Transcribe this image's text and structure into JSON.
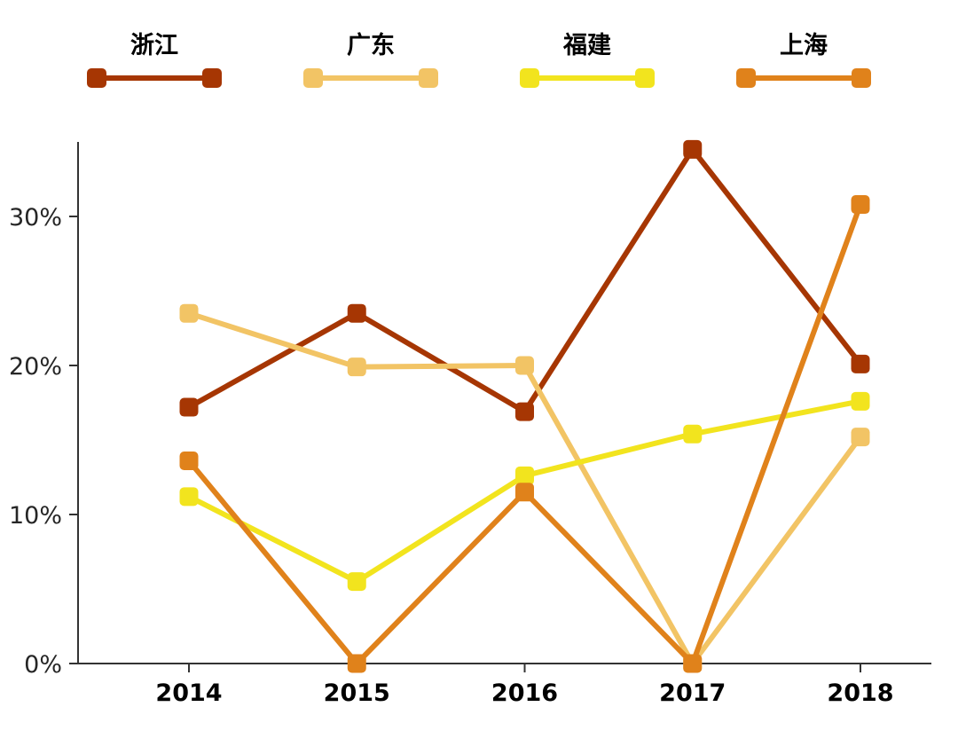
{
  "chart_data": {
    "type": "line",
    "x": [
      "2014",
      "2015",
      "2016",
      "2017",
      "2018"
    ],
    "series": [
      {
        "name": "浙江",
        "color": "#A63603",
        "values": [
          17.2,
          23.5,
          16.9,
          34.5,
          20.1
        ]
      },
      {
        "name": "广东",
        "color": "#F2C465",
        "values": [
          23.5,
          19.9,
          20.0,
          0,
          15.2
        ]
      },
      {
        "name": "福建",
        "color": "#F2E41E",
        "values": [
          11.2,
          5.5,
          12.6,
          15.4,
          17.6
        ]
      },
      {
        "name": "上海",
        "color": "#E0821B",
        "values": [
          13.6,
          0,
          11.5,
          0,
          30.8
        ]
      }
    ],
    "yticks": [
      0,
      10,
      20,
      30
    ],
    "ytick_labels": [
      "0%",
      "10%",
      "20%",
      "30%"
    ],
    "ylim": [
      0,
      35
    ],
    "xlabel": "",
    "ylabel": "",
    "title": "",
    "legend_position": "top",
    "grid": false,
    "axis_color": "#333333",
    "tick_label_color": "#262626"
  }
}
